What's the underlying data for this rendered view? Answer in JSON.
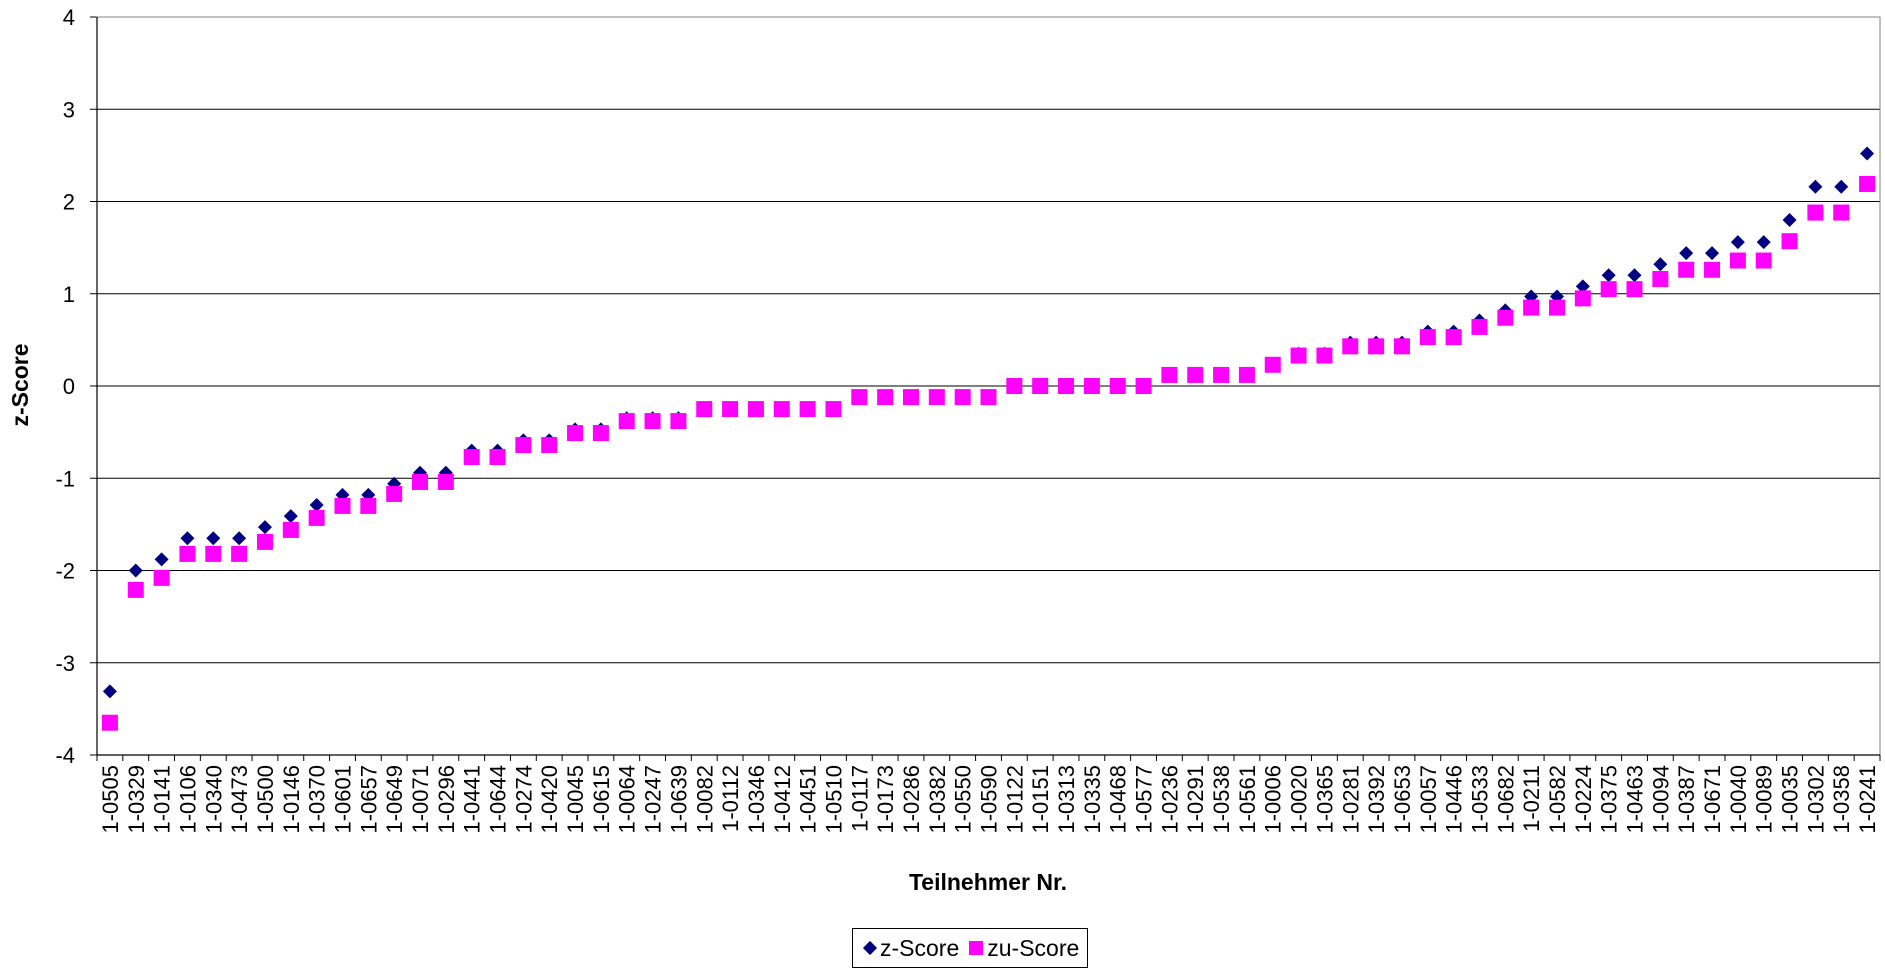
{
  "chart_data": {
    "type": "scatter",
    "title": "",
    "xlabel": "Teilnehmer Nr.",
    "ylabel": "z-Score",
    "ylim": [
      -4,
      4
    ],
    "yticks": [
      -4,
      -3,
      -2,
      -1,
      0,
      1,
      2,
      3,
      4
    ],
    "grid": "horizontal",
    "legend_position": "bottom",
    "categories": [
      "1-0505",
      "1-0329",
      "1-0141",
      "1-0106",
      "1-0340",
      "1-0473",
      "1-0500",
      "1-0146",
      "1-0370",
      "1-0601",
      "1-0657",
      "1-0649",
      "1-0071",
      "1-0296",
      "1-0441",
      "1-0644",
      "1-0274",
      "1-0420",
      "1-0045",
      "1-0615",
      "1-0064",
      "1-0247",
      "1-0639",
      "1-0082",
      "1-0112",
      "1-0346",
      "1-0412",
      "1-0451",
      "1-0510",
      "1-0117",
      "1-0173",
      "1-0286",
      "1-0382",
      "1-0550",
      "1-0590",
      "1-0122",
      "1-0151",
      "1-0313",
      "1-0335",
      "1-0468",
      "1-0577",
      "1-0236",
      "1-0291",
      "1-0538",
      "1-0561",
      "1-0006",
      "1-0020",
      "1-0365",
      "1-0281",
      "1-0392",
      "1-0653",
      "1-0057",
      "1-0446",
      "1-0533",
      "1-0682",
      "1-0211",
      "1-0582",
      "1-0224",
      "1-0375",
      "1-0463",
      "1-0094",
      "1-0387",
      "1-0671",
      "1-0040",
      "1-0089",
      "1-0035",
      "1-0302",
      "1-0358",
      "1-0241"
    ],
    "series": [
      {
        "name": "z-Score",
        "marker": "diamond",
        "color": "#000080",
        "values": [
          -3.31,
          -2.0,
          -1.88,
          -1.65,
          -1.65,
          -1.65,
          -1.53,
          -1.41,
          -1.29,
          -1.18,
          -1.18,
          -1.06,
          -0.94,
          -0.94,
          -0.7,
          -0.7,
          -0.59,
          -0.59,
          -0.47,
          -0.47,
          -0.35,
          -0.35,
          -0.35,
          -0.24,
          -0.24,
          -0.24,
          -0.24,
          -0.24,
          -0.24,
          -0.12,
          -0.12,
          -0.12,
          -0.12,
          -0.12,
          -0.12,
          0.0,
          0.0,
          0.0,
          0.0,
          0.0,
          0.0,
          0.12,
          0.12,
          0.12,
          0.12,
          0.24,
          0.35,
          0.35,
          0.47,
          0.47,
          0.47,
          0.59,
          0.59,
          0.71,
          0.82,
          0.97,
          0.97,
          1.08,
          1.2,
          1.2,
          1.32,
          1.44,
          1.44,
          1.56,
          1.56,
          1.8,
          2.16,
          2.16,
          2.52
        ]
      },
      {
        "name": "zu-Score",
        "marker": "square",
        "color": "#FF00FF",
        "values": [
          -3.65,
          -2.21,
          -2.08,
          -1.82,
          -1.82,
          -1.82,
          -1.69,
          -1.56,
          -1.43,
          -1.3,
          -1.3,
          -1.17,
          -1.04,
          -1.04,
          -0.77,
          -0.77,
          -0.64,
          -0.64,
          -0.51,
          -0.51,
          -0.38,
          -0.38,
          -0.38,
          -0.25,
          -0.25,
          -0.25,
          -0.25,
          -0.25,
          -0.25,
          -0.12,
          -0.12,
          -0.12,
          -0.12,
          -0.12,
          -0.12,
          0.0,
          0.0,
          0.0,
          0.0,
          0.0,
          0.0,
          0.12,
          0.12,
          0.12,
          0.12,
          0.23,
          0.33,
          0.33,
          0.43,
          0.43,
          0.43,
          0.53,
          0.53,
          0.64,
          0.74,
          0.85,
          0.85,
          0.95,
          1.05,
          1.05,
          1.16,
          1.26,
          1.26,
          1.36,
          1.36,
          1.57,
          1.88,
          1.88,
          2.19
        ]
      }
    ]
  }
}
